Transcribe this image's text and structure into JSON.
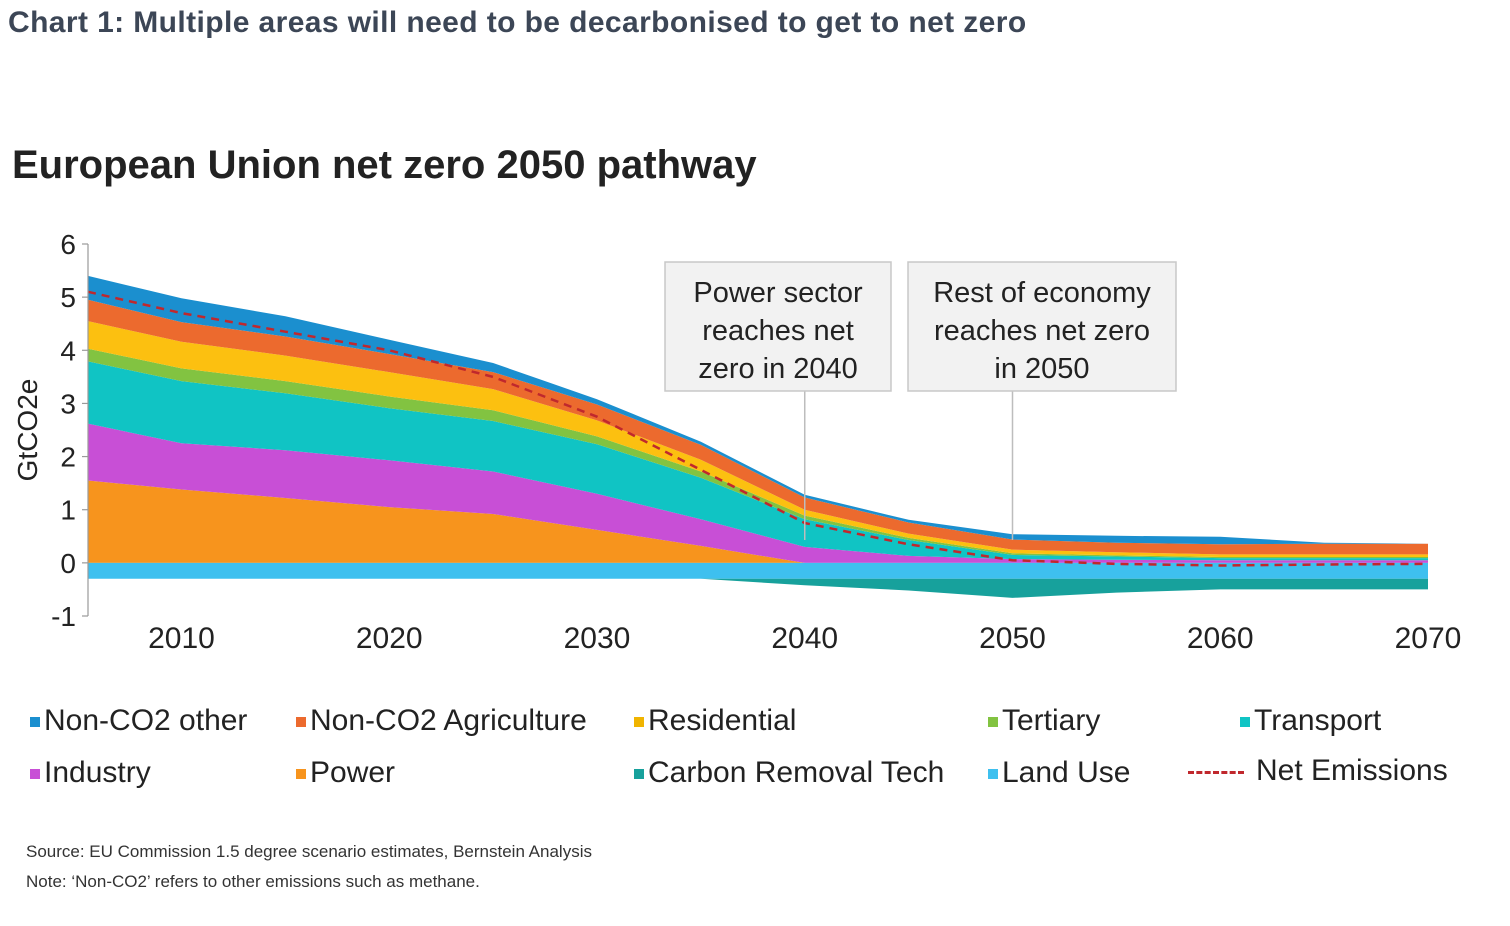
{
  "page_title": "Chart 1: Multiple areas will need to be decarbonised to get to net zero",
  "source": "Source: EU Commission 1.5 degree scenario estimates, Bernstein Analysis",
  "note": "Note: ‘Non-CO2’ refers to other emissions such as methane.",
  "chart_data": {
    "type": "area",
    "title": "European Union net zero 2050 pathway",
    "ylabel": "GtCO2e",
    "xlabel": "",
    "xlim": [
      2005.5,
      2070
    ],
    "ylim": [
      -1,
      6
    ],
    "x_ticks": [
      "2010",
      "2020",
      "2030",
      "2040",
      "2050",
      "2060",
      "2070"
    ],
    "y_ticks": [
      "6",
      "5",
      "4",
      "3",
      "2",
      "1",
      "0",
      "-1"
    ],
    "x": [
      2005.5,
      2010,
      2015,
      2020,
      2025,
      2030,
      2035,
      2040,
      2045,
      2050,
      2055,
      2060,
      2065,
      2070
    ],
    "positive_series": [
      {
        "name": "Power",
        "color": "#f7941d",
        "values": [
          1.55,
          1.38,
          1.22,
          1.05,
          0.92,
          0.62,
          0.32,
          0.0,
          0.0,
          0.0,
          0.0,
          0.0,
          0.0,
          0.0
        ]
      },
      {
        "name": "Industry",
        "color": "#c84fd6",
        "values": [
          1.07,
          0.87,
          0.9,
          0.88,
          0.8,
          0.68,
          0.5,
          0.3,
          0.13,
          0.07,
          0.06,
          0.05,
          0.05,
          0.05
        ]
      },
      {
        "name": "Transport",
        "color": "#10c4c4",
        "values": [
          1.17,
          1.17,
          1.07,
          0.98,
          0.95,
          0.93,
          0.78,
          0.52,
          0.3,
          0.08,
          0.06,
          0.04,
          0.04,
          0.04
        ]
      },
      {
        "name": "Tertiary",
        "color": "#82c341",
        "values": [
          0.24,
          0.24,
          0.23,
          0.22,
          0.2,
          0.15,
          0.12,
          0.07,
          0.04,
          0.03,
          0.02,
          0.02,
          0.02,
          0.02
        ]
      },
      {
        "name": "Residential",
        "color": "#fcc010",
        "values": [
          0.52,
          0.5,
          0.48,
          0.46,
          0.4,
          0.3,
          0.22,
          0.11,
          0.08,
          0.07,
          0.06,
          0.05,
          0.05,
          0.05
        ]
      },
      {
        "name": "Non-CO2 Agriculture",
        "color": "#ec6a2e",
        "values": [
          0.4,
          0.37,
          0.36,
          0.34,
          0.32,
          0.3,
          0.28,
          0.23,
          0.21,
          0.19,
          0.18,
          0.19,
          0.2,
          0.2
        ]
      },
      {
        "name": "Non-CO2 other",
        "color": "#1b8fcf",
        "values": [
          0.45,
          0.45,
          0.38,
          0.27,
          0.17,
          0.1,
          0.06,
          0.05,
          0.05,
          0.1,
          0.13,
          0.14,
          0.02,
          0.0
        ]
      }
    ],
    "negative_series": [
      {
        "name": "Land Use",
        "color": "#3ec0ef",
        "values": [
          -0.3,
          -0.3,
          -0.3,
          -0.3,
          -0.3,
          -0.3,
          -0.3,
          -0.3,
          -0.3,
          -0.3,
          -0.3,
          -0.3,
          -0.3,
          -0.3
        ]
      },
      {
        "name": "Carbon Removal Tech",
        "color": "#17a19c",
        "values": [
          0.0,
          0.0,
          0.0,
          0.0,
          0.0,
          0.0,
          0.0,
          -0.12,
          -0.22,
          -0.36,
          -0.26,
          -0.2,
          -0.2,
          -0.2
        ]
      }
    ],
    "net_emissions": {
      "name": "Net Emissions",
      "color": "#c0282d",
      "values": [
        5.1,
        4.7,
        4.35,
        4.0,
        3.5,
        2.75,
        1.75,
        0.75,
        0.35,
        0.05,
        -0.02,
        -0.05,
        -0.03,
        -0.02
      ]
    },
    "annotations": [
      {
        "lines": [
          "Power sector",
          "reaches net",
          "zero in 2040"
        ],
        "x": 2040
      },
      {
        "lines": [
          "Rest of economy",
          "reaches net zero",
          "in 2050"
        ],
        "x": 2050
      }
    ],
    "legend": {
      "placement": "bottom",
      "items": [
        {
          "label": "Non-CO2 other",
          "color": "#1b8fcf"
        },
        {
          "label": "Non-CO2 Agriculture",
          "color": "#ec6a2e"
        },
        {
          "label": "Residential",
          "color": "#f0b400"
        },
        {
          "label": "Tertiary",
          "color": "#82c341"
        },
        {
          "label": "Transport",
          "color": "#10c4c4"
        },
        {
          "label": "Industry",
          "color": "#c84fd6"
        },
        {
          "label": "Power",
          "color": "#f7941d"
        },
        {
          "label": "Carbon Removal Tech",
          "color": "#17a19c"
        },
        {
          "label": "Land Use",
          "color": "#3ec0ef"
        },
        {
          "label": "Net Emissions",
          "color": "#c0282d",
          "style": "dashed"
        }
      ]
    }
  }
}
